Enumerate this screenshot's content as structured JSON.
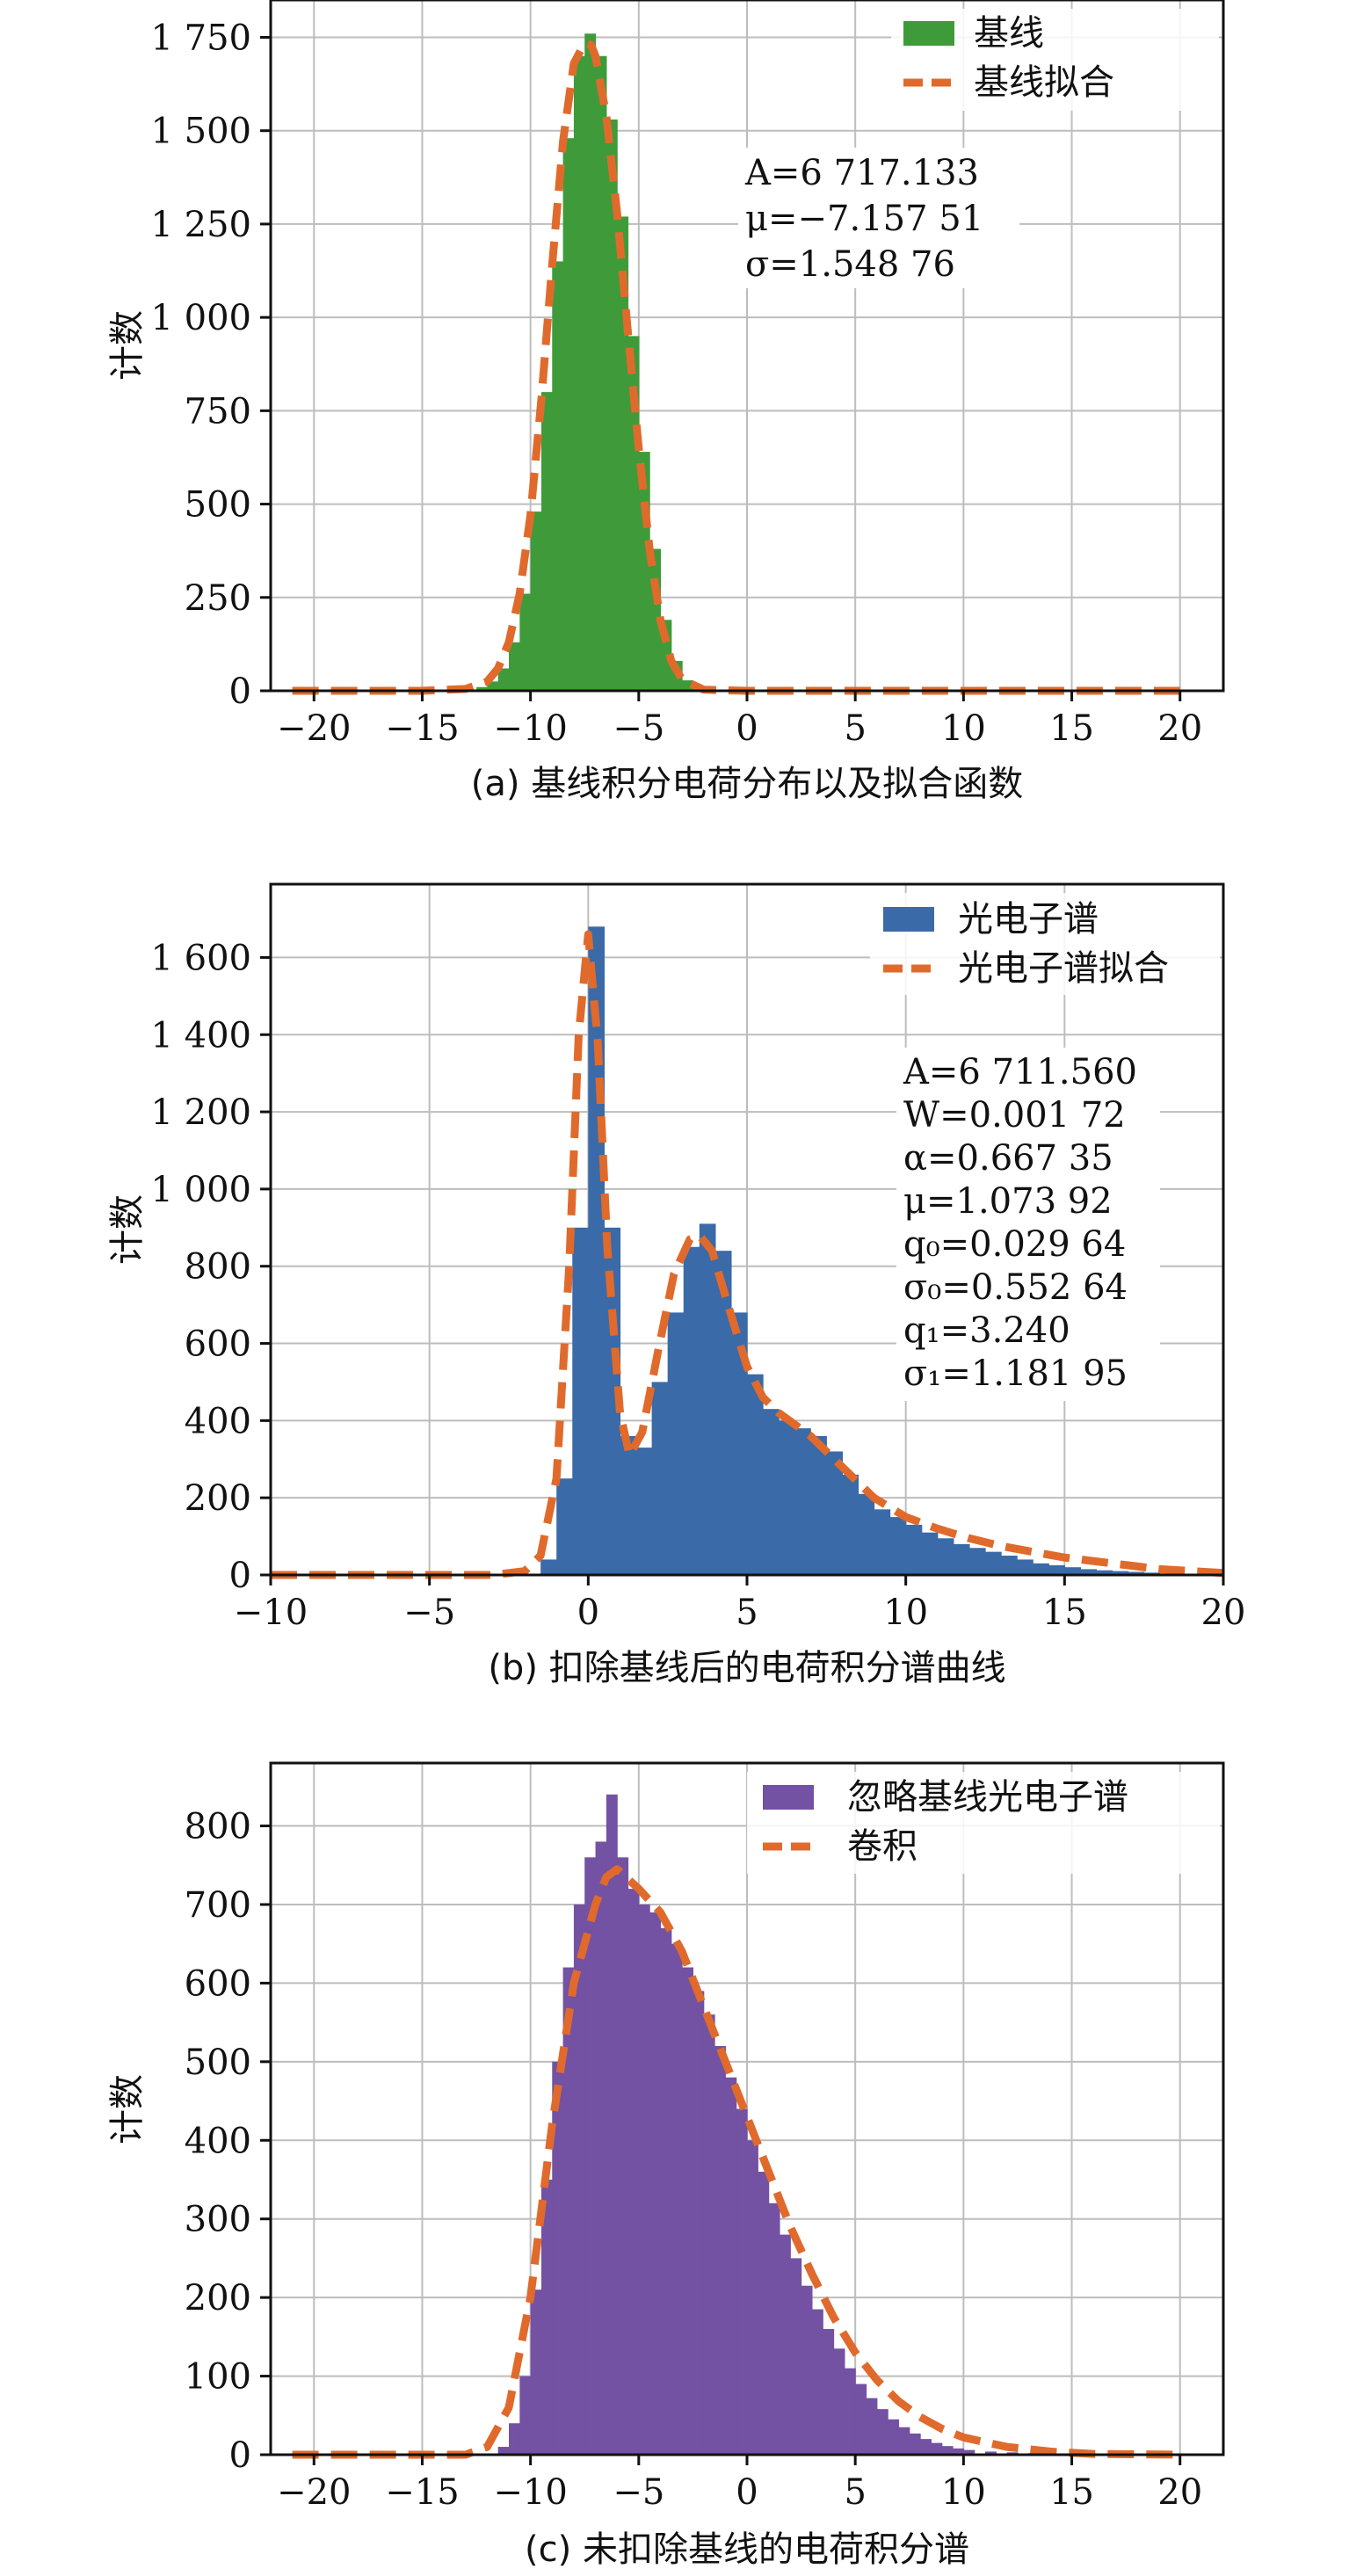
{
  "chart_data": [
    {
      "id": "a",
      "type": "bar",
      "caption": "(a) 基线积分电荷分布以及拟合函数",
      "ylabel": "计数",
      "xlim": [
        -22,
        22
      ],
      "ylim": [
        0,
        1850
      ],
      "xticks": [
        -20,
        -15,
        -10,
        -5,
        0,
        5,
        10,
        15,
        20
      ],
      "xtick_labels": [
        "−20",
        "−15",
        "−10",
        "−5",
        "0",
        "5",
        "10",
        "15",
        "20"
      ],
      "yticks": [
        0,
        250,
        500,
        750,
        1000,
        1250,
        1500,
        1750
      ],
      "ytick_labels": [
        "0",
        "250",
        "500",
        "750",
        "1 000",
        "1 250",
        "1 500",
        "1 750"
      ],
      "grid": true,
      "legend_position": "top-right",
      "hist": {
        "name": "基线",
        "color": "#3f9b3a",
        "x": [
          -13.0,
          -12.5,
          -12.0,
          -11.5,
          -11.0,
          -10.5,
          -10.0,
          -9.5,
          -9.0,
          -8.5,
          -8.0,
          -7.5,
          -7.0,
          -6.5,
          -6.0,
          -5.5,
          -5.0,
          -4.5,
          -4.0,
          -3.5,
          -3.0,
          -2.5,
          -2.0
        ],
        "values": [
          0,
          10,
          25,
          60,
          130,
          260,
          480,
          800,
          1150,
          1480,
          1700,
          1760,
          1700,
          1530,
          1270,
          950,
          640,
          380,
          190,
          80,
          28,
          8,
          0
        ]
      },
      "fit": {
        "name": "基线拟合",
        "color": "#e06a2c",
        "x": [
          -21,
          -15,
          -13,
          -12,
          -11.5,
          -11,
          -10.5,
          -10,
          -9.5,
          -9,
          -8.5,
          -8,
          -7.5,
          -7.2,
          -7,
          -6.5,
          -6,
          -5.5,
          -5,
          -4.5,
          -4,
          -3.5,
          -3,
          -2,
          0,
          20
        ],
        "values": [
          0,
          0,
          5,
          25,
          60,
          130,
          260,
          470,
          780,
          1140,
          1470,
          1680,
          1735,
          1730,
          1700,
          1540,
          1280,
          960,
          650,
          380,
          190,
          80,
          30,
          3,
          0,
          0
        ]
      },
      "annotations": [
        "A=6 717.133",
        "μ=−7.157 51",
        "σ=1.548 76"
      ]
    },
    {
      "id": "b",
      "type": "bar",
      "caption": "(b) 扣除基线后的电荷积分谱曲线",
      "ylabel": "计数",
      "xlim": [
        -10,
        20
      ],
      "ylim": [
        0,
        1790
      ],
      "xticks": [
        -10,
        -5,
        0,
        5,
        10,
        15,
        20
      ],
      "xtick_labels": [
        "−10",
        "−5",
        "0",
        "5",
        "10",
        "15",
        "20"
      ],
      "yticks": [
        0,
        200,
        400,
        600,
        800,
        1000,
        1200,
        1400,
        1600
      ],
      "ytick_labels": [
        "0",
        "200",
        "400",
        "600",
        "800",
        "1 000",
        "1 200",
        "1 400",
        "1 600"
      ],
      "grid": true,
      "legend_position": "top-right",
      "hist": {
        "name": "光电子谱",
        "color": "#3a6aa8",
        "x": [
          -2.0,
          -1.5,
          -1.0,
          -0.5,
          0.0,
          0.5,
          1.0,
          1.5,
          2.0,
          2.5,
          3.0,
          3.5,
          4.0,
          4.5,
          5.0,
          5.5,
          6.0,
          6.5,
          7.0,
          7.5,
          8.0,
          8.5,
          9.0,
          9.5,
          10.0,
          10.5,
          11.0,
          11.5,
          12.0,
          12.5,
          13.0,
          13.5,
          14.0,
          14.5,
          15.0,
          15.5,
          16.0,
          16.5,
          17.0,
          17.5,
          18.0,
          18.5,
          19.0,
          19.5
        ],
        "values": [
          0,
          40,
          250,
          900,
          1680,
          900,
          360,
          330,
          500,
          680,
          850,
          910,
          840,
          680,
          520,
          430,
          400,
          380,
          360,
          320,
          260,
          210,
          170,
          150,
          130,
          110,
          95,
          80,
          70,
          60,
          50,
          40,
          30,
          25,
          20,
          15,
          12,
          10,
          8,
          6,
          4,
          3,
          2,
          1
        ]
      },
      "fit": {
        "name": "光电子谱拟合",
        "color": "#e06a2c",
        "x": [
          -10,
          -3,
          -2,
          -1.5,
          -1,
          -0.6,
          -0.3,
          0,
          0.3,
          0.6,
          1,
          1.3,
          1.7,
          2.2,
          2.7,
          3.2,
          3.5,
          3.9,
          4.4,
          5,
          5.5,
          6,
          6.5,
          7,
          8,
          9,
          10,
          11,
          12,
          13,
          14,
          15,
          16,
          17,
          18,
          20
        ],
        "values": [
          0,
          0,
          10,
          50,
          250,
          800,
          1400,
          1660,
          1380,
          850,
          420,
          310,
          370,
          580,
          780,
          870,
          880,
          840,
          700,
          540,
          460,
          420,
          390,
          360,
          280,
          200,
          150,
          120,
          95,
          75,
          60,
          45,
          35,
          25,
          15,
          5
        ]
      },
      "annotations": [
        "A=6 711.560",
        "W=0.001 72",
        "α=0.667 35",
        "μ=1.073 92",
        "q₀=0.029 64",
        "σ₀=0.552 64",
        "q₁=3.240",
        "σ₁=1.181 95"
      ]
    },
    {
      "id": "c",
      "type": "bar",
      "caption": "(c) 未扣除基线的电荷积分谱",
      "ylabel": "计数",
      "xlim": [
        -22,
        22
      ],
      "ylim": [
        0,
        880
      ],
      "xticks": [
        -20,
        -15,
        -10,
        -5,
        0,
        5,
        10,
        15,
        20
      ],
      "xtick_labels": [
        "−20",
        "−15",
        "−10",
        "−5",
        "0",
        "5",
        "10",
        "15",
        "20"
      ],
      "yticks": [
        0,
        100,
        200,
        300,
        400,
        500,
        600,
        700,
        800
      ],
      "ytick_labels": [
        "0",
        "100",
        "200",
        "300",
        "400",
        "500",
        "600",
        "700",
        "800"
      ],
      "grid": true,
      "legend_position": "top-right",
      "hist": {
        "name": "忽略基线光电子谱",
        "color": "#7351a3",
        "x": [
          -12.0,
          -11.5,
          -11.0,
          -10.5,
          -10.0,
          -9.5,
          -9.0,
          -8.5,
          -8.0,
          -7.5,
          -7.0,
          -6.5,
          -6.0,
          -5.5,
          -5.0,
          -4.5,
          -4.0,
          -3.5,
          -3.0,
          -2.5,
          -2.0,
          -1.5,
          -1.0,
          -0.5,
          0.0,
          0.5,
          1.0,
          1.5,
          2.0,
          2.5,
          3.0,
          3.5,
          4.0,
          4.5,
          5.0,
          5.5,
          6.0,
          6.5,
          7.0,
          7.5,
          8.0,
          8.5,
          9.0,
          9.5,
          10.0,
          11.0,
          12.0,
          13.0,
          14.0
        ],
        "values": [
          0,
          10,
          40,
          100,
          210,
          350,
          500,
          620,
          700,
          760,
          780,
          840,
          760,
          720,
          700,
          690,
          670,
          650,
          620,
          590,
          560,
          520,
          480,
          440,
          400,
          360,
          320,
          280,
          250,
          215,
          185,
          160,
          135,
          110,
          90,
          72,
          58,
          45,
          35,
          27,
          20,
          15,
          11,
          8,
          6,
          4,
          3,
          2,
          1
        ]
      },
      "fit": {
        "name": "卷积",
        "color": "#e06a2c",
        "x": [
          -21,
          -13,
          -12,
          -11,
          -10,
          -9,
          -8,
          -7,
          -6.5,
          -6,
          -5,
          -4,
          -3,
          -2,
          -1,
          0,
          1,
          2,
          3,
          4,
          5,
          6,
          7,
          8,
          9,
          10,
          12,
          14,
          16,
          20
        ],
        "values": [
          0,
          0,
          10,
          60,
          200,
          420,
          600,
          700,
          735,
          745,
          720,
          690,
          640,
          570,
          500,
          430,
          360,
          290,
          230,
          175,
          130,
          95,
          68,
          48,
          33,
          22,
          10,
          4,
          1,
          0
        ]
      }
    }
  ]
}
